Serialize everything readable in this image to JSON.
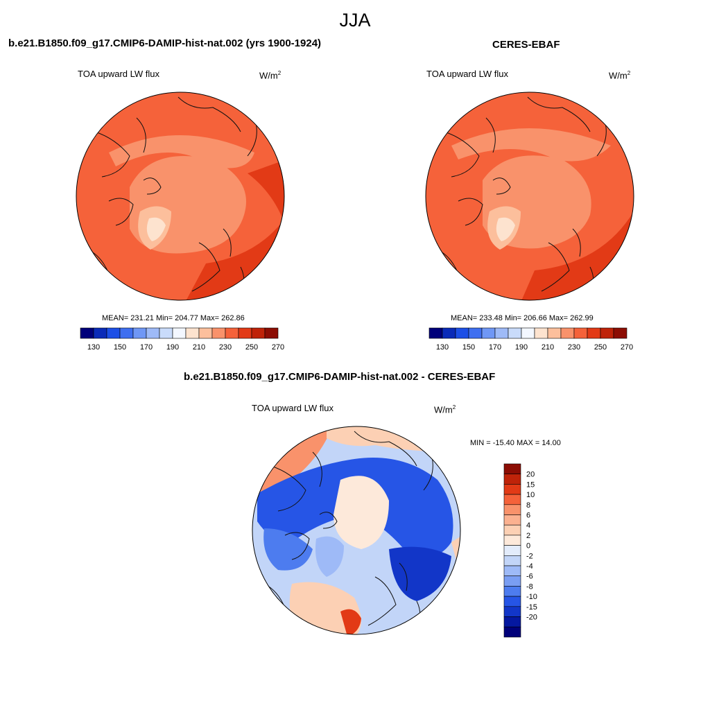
{
  "figure": {
    "title": "JJA"
  },
  "panels": [
    {
      "title": "b.e21.B1850.f09_g17.CMIP6-DAMIP-hist-nat.002 (yrs 1900-1924)",
      "variable": "TOA upward LW flux",
      "units_base": "W/m",
      "units_exp": "2",
      "stats": "MEAN= 231.21  Min= 204.77  Max= 262.86",
      "mean": 231.21,
      "min": 204.77,
      "max": 262.86,
      "colorbar": {
        "colors": [
          "#00007a",
          "#0a2bb8",
          "#1c4fe6",
          "#3f6ff0",
          "#6f97f5",
          "#9ebaf7",
          "#c9dbfa",
          "#f3f7ff",
          "#fde3cf",
          "#fcbf9c",
          "#f9926b",
          "#f5623a",
          "#e23a16",
          "#bf2309",
          "#8c0d04"
        ],
        "ticks": [
          "130",
          "150",
          "170",
          "190",
          "210",
          "230",
          "250",
          "270"
        ]
      }
    },
    {
      "title": "CERES-EBAF",
      "variable": "TOA upward LW flux",
      "units_base": "W/m",
      "units_exp": "2",
      "stats": "MEAN= 233.48  Min= 206.66  Max= 262.99",
      "mean": 233.48,
      "min": 206.66,
      "max": 262.99,
      "colorbar": {
        "colors": [
          "#00007a",
          "#0a2bb8",
          "#1c4fe6",
          "#3f6ff0",
          "#6f97f5",
          "#9ebaf7",
          "#c9dbfa",
          "#f3f7ff",
          "#fde3cf",
          "#fcbf9c",
          "#f9926b",
          "#f5623a",
          "#e23a16",
          "#bf2309",
          "#8c0d04"
        ],
        "ticks": [
          "130",
          "150",
          "170",
          "190",
          "210",
          "230",
          "250",
          "270"
        ]
      }
    }
  ],
  "diff": {
    "title": "b.e21.B1850.f09_g17.CMIP6-DAMIP-hist-nat.002 - CERES-EBAF",
    "variable": "TOA upward LW flux",
    "units_base": "W/m",
    "units_exp": "2",
    "stats": "MIN = -15.40 MAX =  14.00",
    "min": -15.4,
    "max": 14.0,
    "colorbar": {
      "colors": [
        "#8c0d04",
        "#bf2309",
        "#e23a16",
        "#f5623a",
        "#f9926b",
        "#fbb190",
        "#fcd0b4",
        "#fde9da",
        "#e3ecfb",
        "#c2d5f8",
        "#9ebaf7",
        "#7a9ef3",
        "#4d7cef",
        "#2655e6",
        "#1236c8",
        "#0518a0",
        "#00007a"
      ],
      "ticks": [
        "20",
        "15",
        "10",
        "8",
        "6",
        "4",
        "2",
        "0",
        "-2",
        "-4",
        "-6",
        "-8",
        "-10",
        "-15",
        "-20"
      ]
    }
  }
}
